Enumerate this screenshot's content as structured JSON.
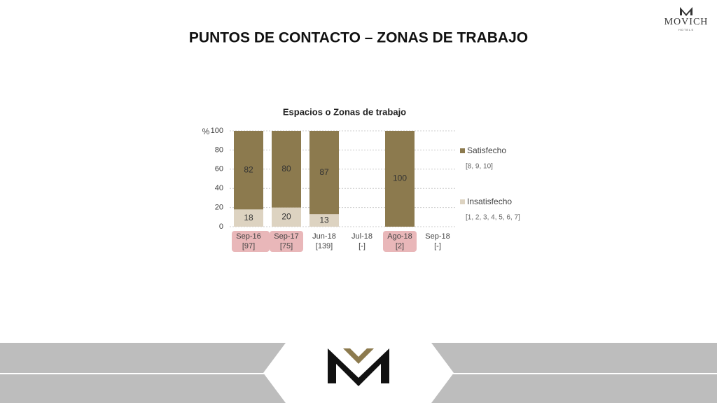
{
  "header": {
    "title": "PUNTOS DE CONTACTO – ZONAS DE TRABAJO",
    "logo": "MOVICH",
    "logo_sub": "HOTELS"
  },
  "chart_data": {
    "type": "stacked_bar",
    "title": "Espacios o Zonas de trabajo",
    "y_label": "%",
    "categories": [
      "Sep-16",
      "Sep-17",
      "Jun-18",
      "Jul-18",
      "Ago-18",
      "Sep-18"
    ],
    "sample_sizes": [
      "[97]",
      "[75]",
      "[139]",
      "[-]",
      "[2]",
      "[-]"
    ],
    "highlight": [
      true,
      true,
      false,
      false,
      true,
      false
    ],
    "highlight_color": "#e9b7b9",
    "series": [
      {
        "name": "Satisfecho",
        "scale": "[8, 9, 10]",
        "color": "#8c7a4e",
        "values": [
          82,
          80,
          87,
          null,
          100,
          null
        ]
      },
      {
        "name": "Insatisfecho",
        "scale": "[1, 2, 3, 4, 5, 6, 7]",
        "color": "#ddd3c1",
        "values": [
          18,
          20,
          13,
          null,
          null,
          null
        ]
      }
    ],
    "ylim": [
      0,
      100
    ],
    "yticks": [
      0,
      20,
      40,
      60,
      80,
      100
    ],
    "grid": true,
    "legend": "right"
  }
}
